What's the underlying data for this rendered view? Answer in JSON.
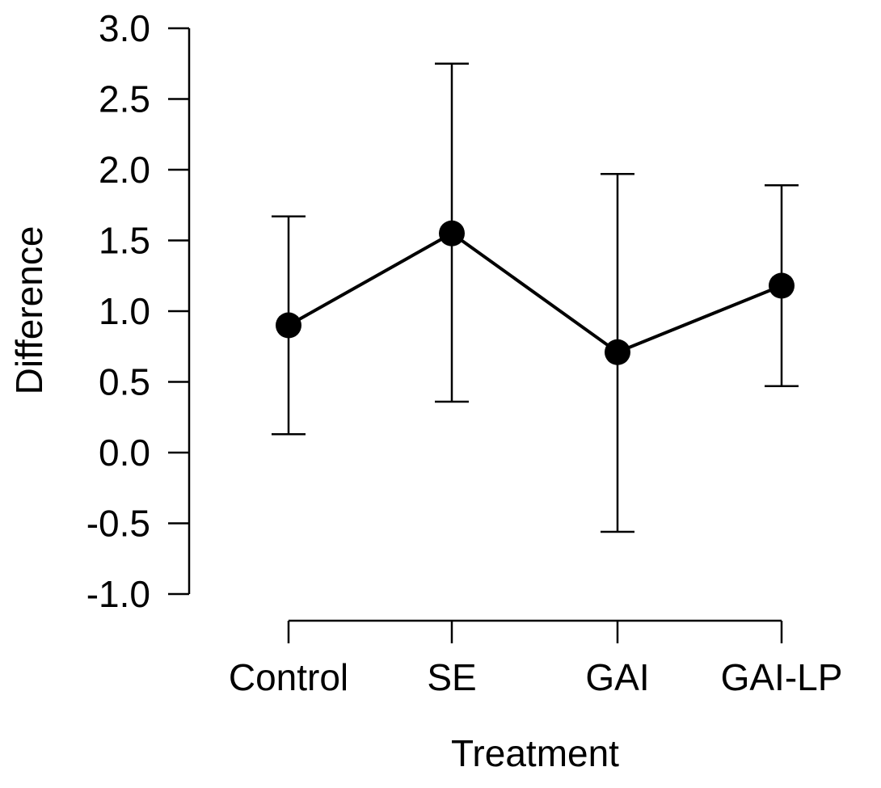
{
  "chart_data": {
    "type": "line",
    "title": "",
    "xlabel": "Treatment",
    "ylabel": "Difference",
    "categories": [
      "Control",
      "SE",
      "GAI",
      "GAI-LP"
    ],
    "series": [
      {
        "name": "Difference",
        "values": [
          0.9,
          1.55,
          0.71,
          1.18
        ],
        "error_lower": [
          0.13,
          0.36,
          -0.56,
          0.47
        ],
        "error_upper": [
          1.67,
          2.75,
          1.97,
          1.89
        ]
      }
    ],
    "ylim": [
      -1.0,
      3.0
    ],
    "yticks": [
      -1.0,
      -0.5,
      0.0,
      0.5,
      1.0,
      1.5,
      2.0,
      2.5,
      3.0
    ],
    "ytick_labels": [
      "-1.0",
      "-0.5",
      "0.0",
      "0.5",
      "1.0",
      "1.5",
      "2.0",
      "2.5",
      "3.0"
    ],
    "grid": false,
    "legend": "none"
  }
}
